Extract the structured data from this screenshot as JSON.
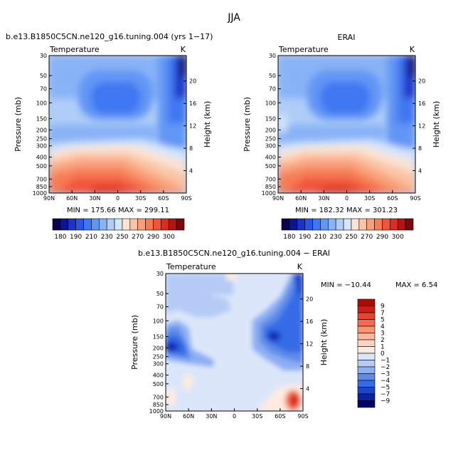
{
  "page": {
    "title": "JJA",
    "diff_title": "b.e13.B1850C5CN.ne120_g16.tuning.004 − ERAI"
  },
  "chart_data": [
    {
      "type": "heatmap",
      "title": "b.e13.B1850C5CN.ne120_g16.tuning.004 (yrs 1−17)",
      "subtitle": "Temperature",
      "units": "K",
      "xlabel": "",
      "ylabel": "Pressure (mb)",
      "y2label": "Height (km)",
      "x_ticks": [
        "90N",
        "60N",
        "30N",
        "0",
        "30S",
        "60S",
        "90S"
      ],
      "y_ticks": [
        30,
        50,
        70,
        100,
        150,
        200,
        250,
        300,
        400,
        500,
        700,
        850,
        1000
      ],
      "y2_ticks": [
        20,
        16,
        12,
        8,
        4
      ],
      "ylim": [
        1000,
        30
      ],
      "y_scale": "log",
      "stats": "MIN = 175.66   MAX = 299.11",
      "colorbar": {
        "orientation": "horizontal",
        "labels": [
          "180",
          "190",
          "210",
          "230",
          "250",
          "270",
          "290",
          "300"
        ],
        "colors": [
          "#08004e",
          "#0a1690",
          "#1a34c6",
          "#2a56e8",
          "#3f77f2",
          "#6296f5",
          "#89b3f7",
          "#b0cdf8",
          "#d4e6fa",
          "#fce3d2",
          "#fbc4a4",
          "#f9a07a",
          "#f67b55",
          "#f2543a",
          "#dd2d1d",
          "#b21414",
          "#7c0909"
        ]
      }
    },
    {
      "type": "heatmap",
      "title": "ERAI",
      "subtitle": "Temperature",
      "units": "K",
      "xlabel": "",
      "ylabel": "Pressure (mb)",
      "y2label": "Height (km)",
      "x_ticks": [
        "90N",
        "60N",
        "30N",
        "0",
        "30S",
        "60S",
        "90S"
      ],
      "y_ticks": [
        30,
        50,
        70,
        100,
        150,
        200,
        250,
        300,
        400,
        500,
        700,
        850,
        1000
      ],
      "y2_ticks": [
        20,
        16,
        12,
        8,
        4
      ],
      "ylim": [
        1000,
        30
      ],
      "y_scale": "log",
      "stats": "MIN = 182.32   MAX = 301.23",
      "colorbar": {
        "orientation": "horizontal",
        "labels": [
          "180",
          "190",
          "210",
          "230",
          "250",
          "270",
          "290",
          "300"
        ],
        "colors": [
          "#08004e",
          "#0a1690",
          "#1a34c6",
          "#2a56e8",
          "#3f77f2",
          "#6296f5",
          "#89b3f7",
          "#b0cdf8",
          "#d4e6fa",
          "#fce3d2",
          "#fbc4a4",
          "#f9a07a",
          "#f67b55",
          "#f2543a",
          "#dd2d1d",
          "#b21414",
          "#7c0909"
        ]
      }
    },
    {
      "type": "heatmap",
      "title": "b.e13.B1850C5CN.ne120_g16.tuning.004 − ERAI",
      "subtitle": "Temperature",
      "units": "K",
      "xlabel": "",
      "ylabel": "Pressure (mb)",
      "y2label": "Height (km)",
      "x_ticks": [
        "90N",
        "60N",
        "30N",
        "0",
        "30S",
        "60S",
        "90S"
      ],
      "y_ticks": [
        30,
        50,
        70,
        100,
        150,
        200,
        250,
        300,
        400,
        500,
        700,
        850,
        1000
      ],
      "y2_ticks": [
        20,
        16,
        12,
        8,
        4
      ],
      "ylim": [
        1000,
        30
      ],
      "y_scale": "log",
      "stats_min": "MIN = −10.44",
      "stats_max": "MAX =    6.54",
      "colorbar": {
        "orientation": "vertical",
        "labels": [
          "9",
          "7",
          "5",
          "4",
          "3",
          "2",
          "1",
          "0",
          "−1",
          "−2",
          "−3",
          "−4",
          "−5",
          "−7",
          "−9"
        ],
        "colors": [
          "#a50f08",
          "#cd1e15",
          "#e8432f",
          "#f36a4e",
          "#f79474",
          "#fab79c",
          "#fcd5c0",
          "#fdebe0",
          "#dbe6fa",
          "#b5cbf6",
          "#8caef2",
          "#5e8be9",
          "#356ce6",
          "#1c45cd",
          "#0c22a2",
          "#04006a"
        ]
      }
    }
  ]
}
